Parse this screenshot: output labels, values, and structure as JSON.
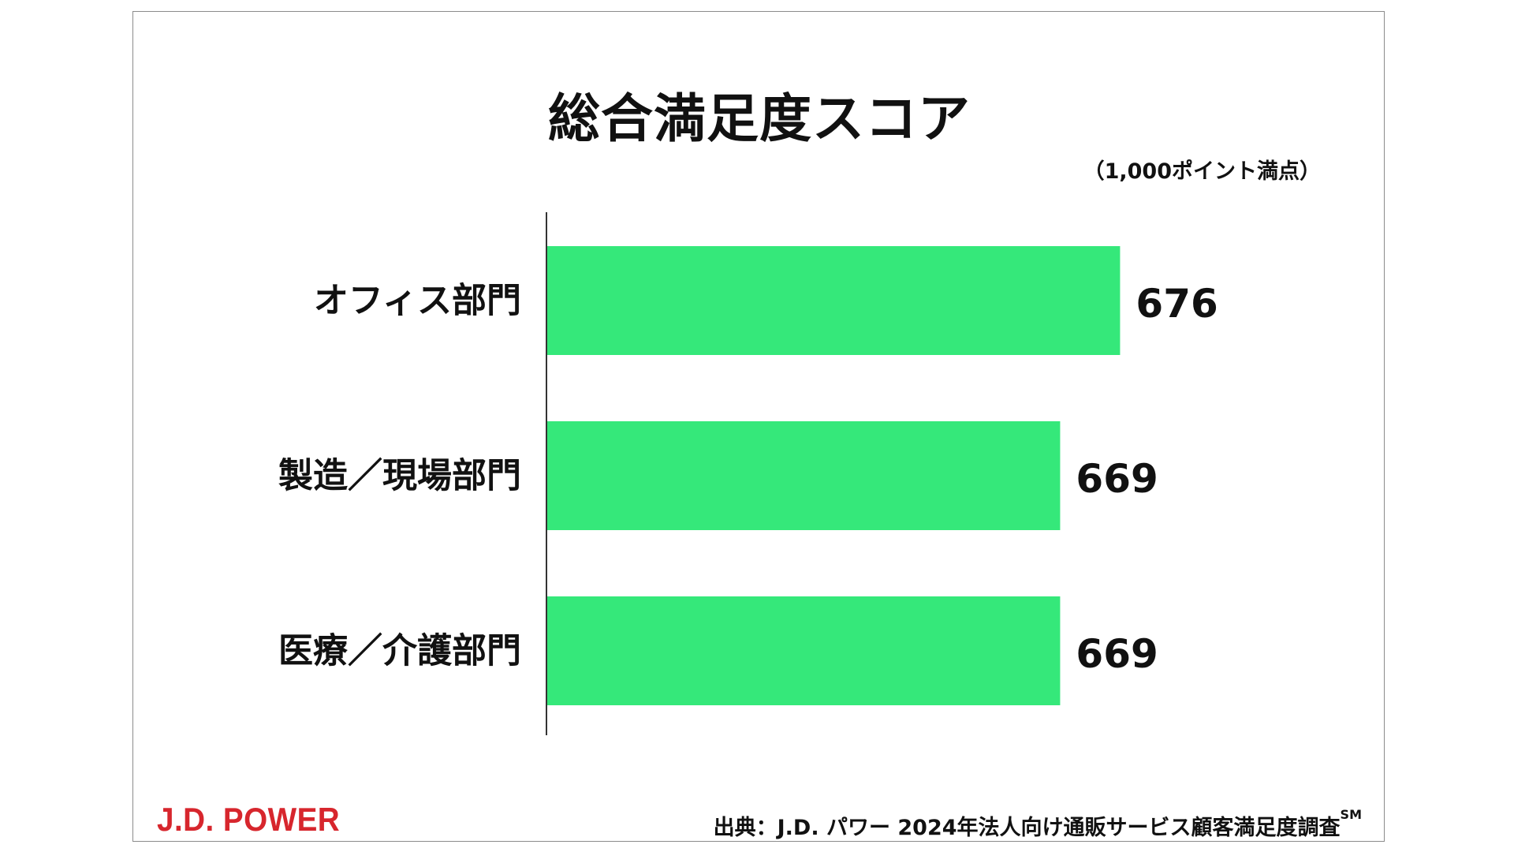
{
  "chart_data": {
    "type": "bar",
    "orientation": "horizontal",
    "title": "総合満足度スコア",
    "unit_note": "（1,000ポイント満点）",
    "categories": [
      "オフィス部門",
      "製造／現場部門",
      "医療／介護部門"
    ],
    "values": [
      676,
      669,
      669
    ],
    "value_labels": [
      "676",
      "669",
      "669"
    ],
    "bar_color": "#35e87a",
    "xlim": [
      609,
      686
    ],
    "grid": false,
    "legend": "none"
  },
  "footer": {
    "logo_text": "J.D. POWER",
    "source_text": "出典：J.D. パワー 2024年法人向け通販サービス顧客満足度調査",
    "source_mark": "SM"
  },
  "colors": {
    "logo": "#d7262d",
    "text": "#111111",
    "axis": "#333333"
  }
}
